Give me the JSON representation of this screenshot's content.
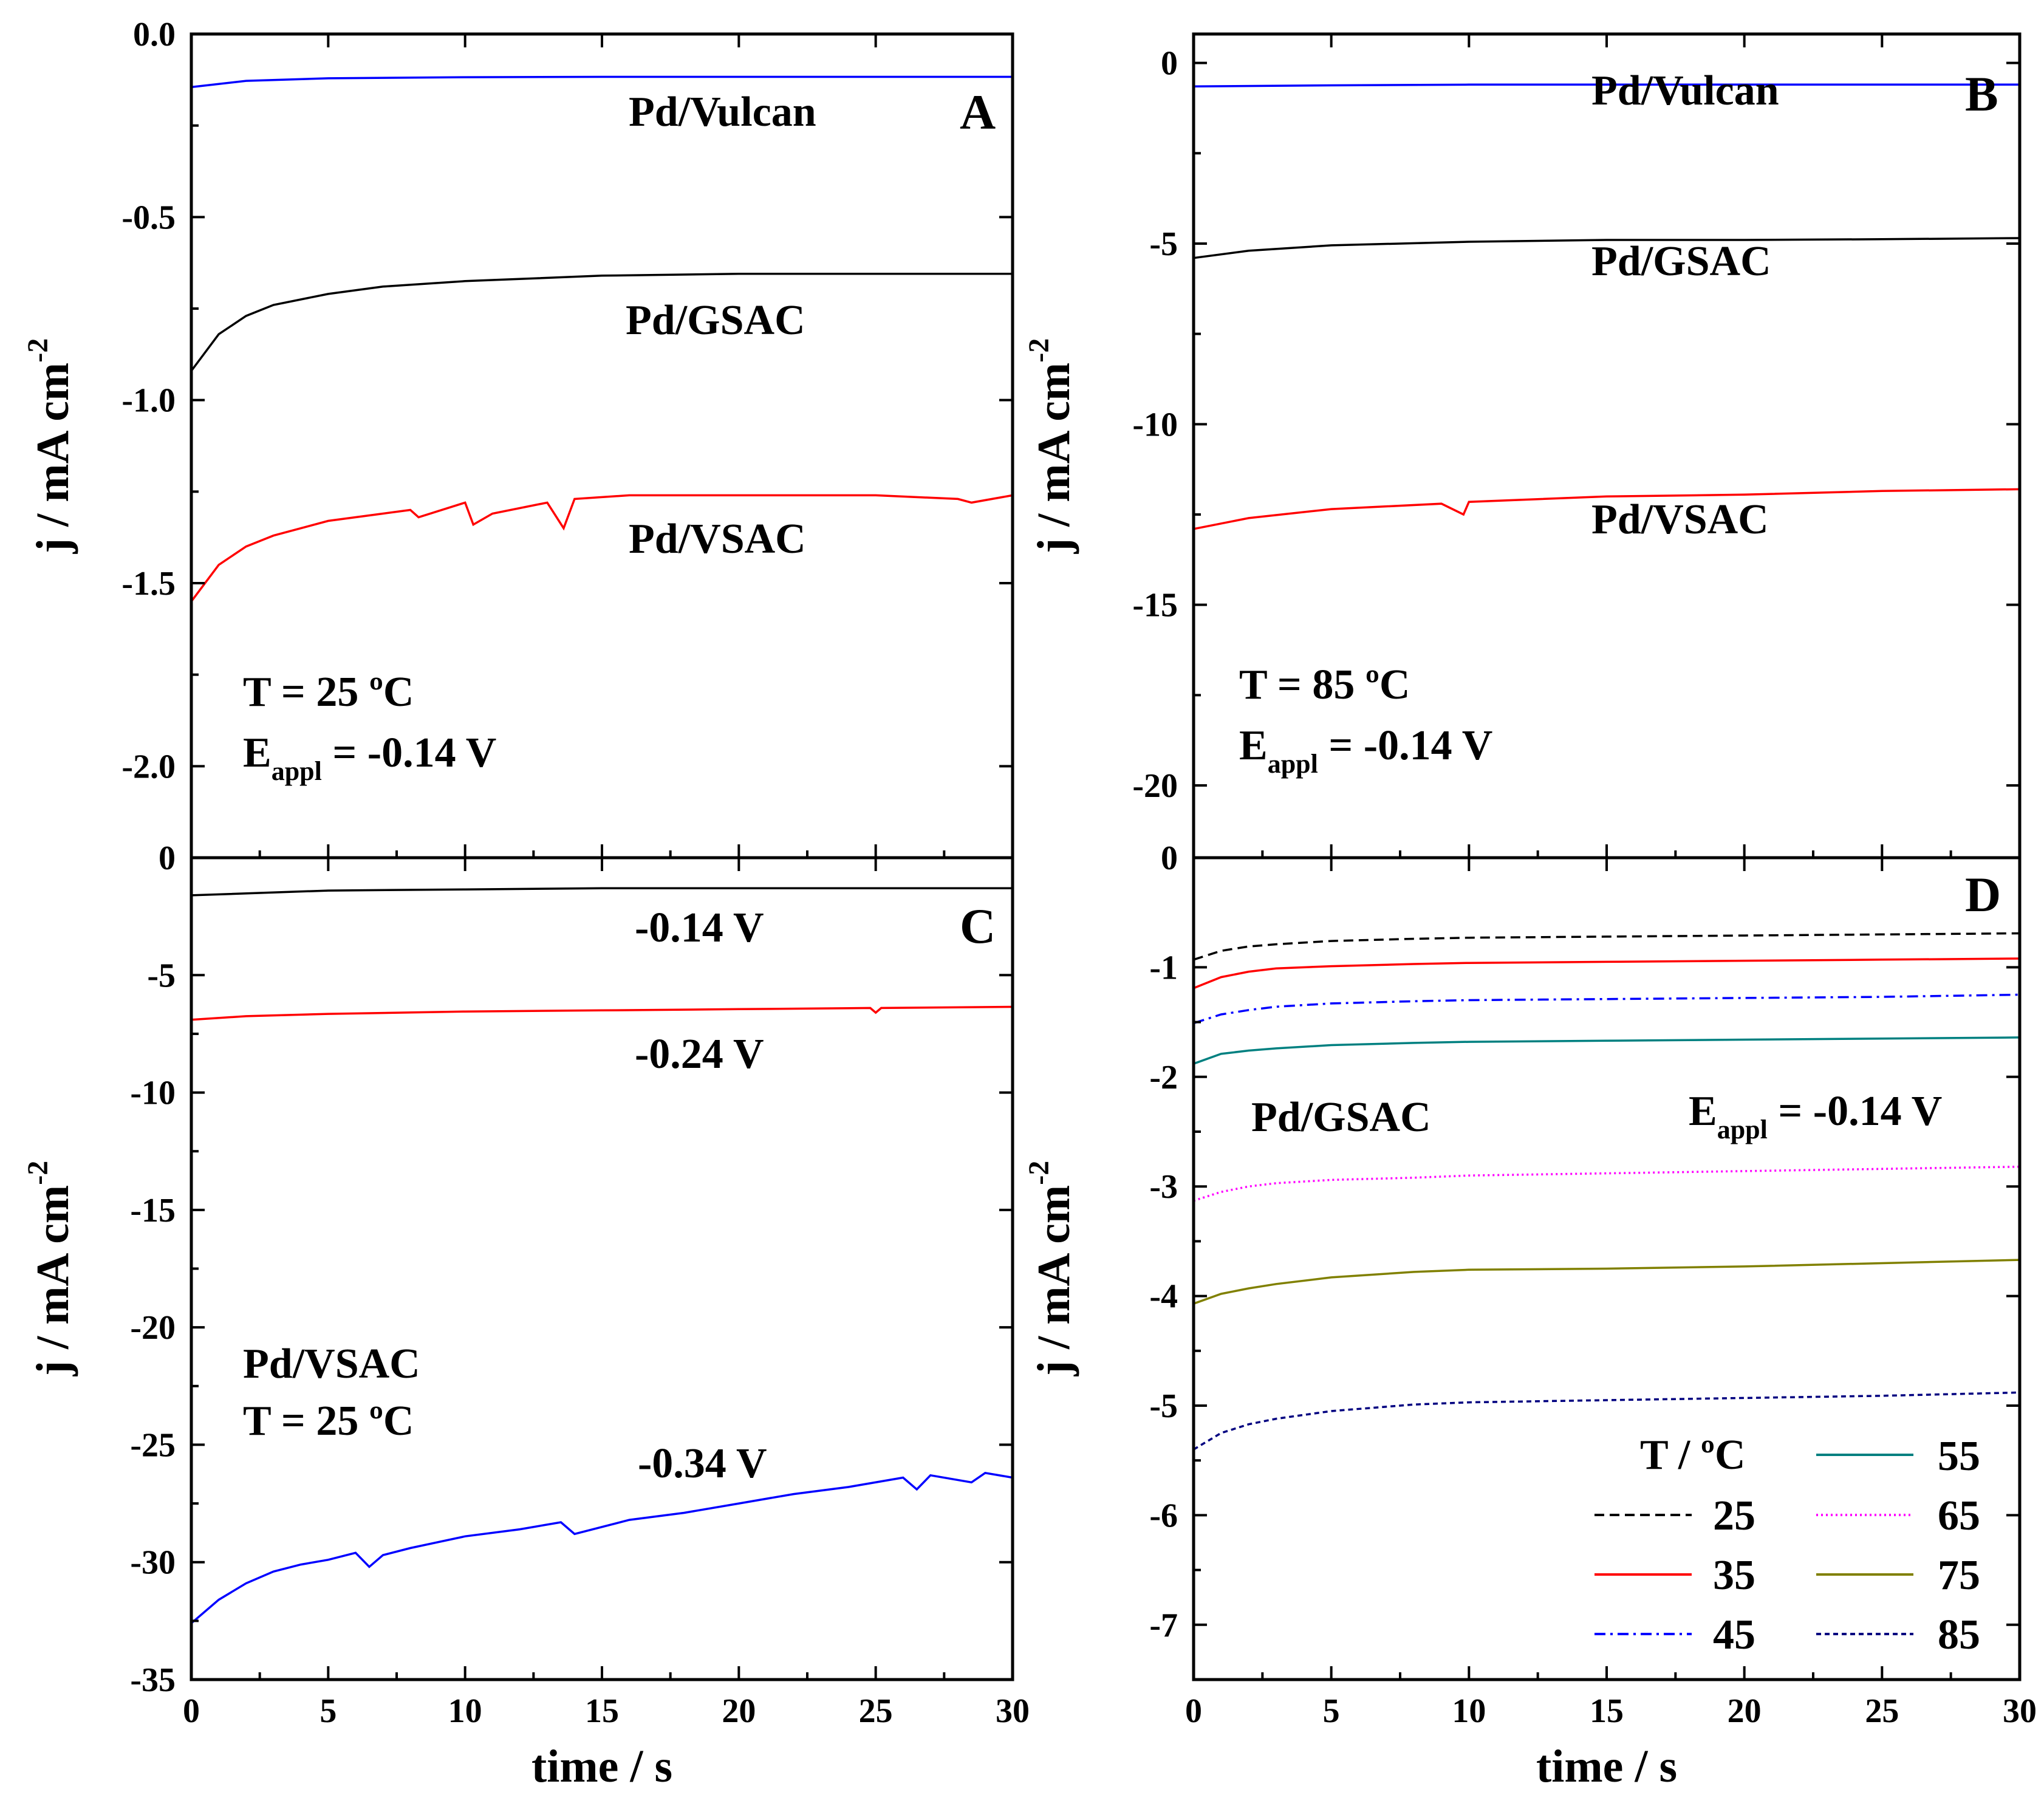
{
  "chart_data": [
    {
      "panel": "A",
      "type": "line",
      "xlabel": "",
      "ylabel": "j / mA cm",
      "ylabel_sup": "-2",
      "xlim": [
        0,
        30
      ],
      "ylim": [
        -2.25,
        0.0
      ],
      "yticks": [
        "0.0",
        "-0.5",
        "-1.0",
        "-1.5",
        "-2.0"
      ],
      "yticks_values": [
        0.0,
        -0.5,
        -1.0,
        -1.5,
        -2.0
      ],
      "xticks_values": [
        0,
        5,
        10,
        15,
        20,
        25,
        30
      ],
      "series": [
        {
          "name": "Pd/Vulcan",
          "color": "#0000ff",
          "style": "solid",
          "x": [
            0,
            2,
            5,
            10,
            15,
            20,
            25,
            30
          ],
          "y": [
            -0.145,
            -0.128,
            -0.121,
            -0.118,
            -0.117,
            -0.117,
            -0.117,
            -0.117
          ]
        },
        {
          "name": "Pd/GSAC",
          "color": "#000000",
          "style": "solid",
          "x": [
            0,
            1,
            2,
            3,
            5,
            7,
            10,
            15,
            20,
            25,
            30
          ],
          "y": [
            -0.92,
            -0.82,
            -0.77,
            -0.74,
            -0.71,
            -0.69,
            -0.675,
            -0.66,
            -0.655,
            -0.655,
            -0.655
          ]
        },
        {
          "name": "Pd/VSAC",
          "color": "#ff0000",
          "style": "solid",
          "x": [
            0,
            1,
            2,
            3,
            5,
            7,
            8,
            8.3,
            10,
            10.3,
            11,
            13,
            13.6,
            14,
            16,
            20,
            25,
            28,
            28.5,
            30
          ],
          "y": [
            -1.55,
            -1.45,
            -1.4,
            -1.37,
            -1.33,
            -1.31,
            -1.3,
            -1.32,
            -1.28,
            -1.34,
            -1.31,
            -1.28,
            -1.35,
            -1.27,
            -1.26,
            -1.26,
            -1.26,
            -1.27,
            -1.28,
            -1.26
          ]
        }
      ],
      "annotations": {
        "series_labels": [
          "Pd/Vulcan",
          "Pd/GSAC",
          "Pd/VSAC"
        ],
        "temp": "T = 25 ºC",
        "eappl_main": "E",
        "eappl_sub": "appl",
        "eappl_value": " = -0.14 V"
      }
    },
    {
      "panel": "B",
      "type": "line",
      "xlabel": "",
      "ylabel": "j / mA cm",
      "ylabel_sup": "-2",
      "xlim": [
        0,
        30
      ],
      "ylim": [
        -22,
        0.8
      ],
      "yticks": [
        "0",
        "-5",
        "-10",
        "-15",
        "-20"
      ],
      "yticks_values": [
        0,
        -5,
        -10,
        -15,
        -20
      ],
      "xticks_values": [
        0,
        5,
        10,
        15,
        20,
        25,
        30
      ],
      "series": [
        {
          "name": "Pd/Vulcan",
          "color": "#0000ff",
          "style": "solid",
          "x": [
            0,
            5,
            10,
            15,
            20,
            25,
            30
          ],
          "y": [
            -0.65,
            -0.62,
            -0.6,
            -0.6,
            -0.6,
            -0.6,
            -0.6
          ]
        },
        {
          "name": "Pd/GSAC",
          "color": "#000000",
          "style": "solid",
          "x": [
            0,
            2,
            5,
            10,
            15,
            20,
            25,
            30
          ],
          "y": [
            -5.4,
            -5.2,
            -5.05,
            -4.95,
            -4.9,
            -4.9,
            -4.88,
            -4.85
          ]
        },
        {
          "name": "Pd/VSAC",
          "color": "#ff0000",
          "style": "solid",
          "x": [
            0,
            2,
            5,
            9,
            9.8,
            10,
            15,
            20,
            25,
            30
          ],
          "y": [
            -12.9,
            -12.6,
            -12.35,
            -12.2,
            -12.5,
            -12.15,
            -12.0,
            -11.95,
            -11.85,
            -11.8
          ]
        }
      ],
      "annotations": {
        "series_labels": [
          "Pd/Vulcan",
          "Pd/GSAC",
          "Pd/VSAC"
        ],
        "temp": "T = 85 ºC",
        "eappl_main": "E",
        "eappl_sub": "appl",
        "eappl_value": " = -0.14 V"
      }
    },
    {
      "panel": "C",
      "type": "line",
      "xlabel": "time / s",
      "ylabel": "j / mA cm",
      "ylabel_sup": "-2",
      "xlim": [
        0,
        30
      ],
      "ylim": [
        -35,
        0
      ],
      "yticks": [
        "-5",
        "-10",
        "-15",
        "-20",
        "-25",
        "-30",
        "-35"
      ],
      "yticks_values": [
        -5,
        -10,
        -15,
        -20,
        -25,
        -30,
        -35
      ],
      "xticks": [
        "0",
        "5",
        "10",
        "15",
        "20",
        "25",
        "30"
      ],
      "xticks_values": [
        0,
        5,
        10,
        15,
        20,
        25,
        30
      ],
      "series": [
        {
          "name": "-0.14 V",
          "color": "#000000",
          "style": "solid",
          "x": [
            0,
            5,
            10,
            15,
            20,
            25,
            30
          ],
          "y": [
            -1.6,
            -1.4,
            -1.35,
            -1.3,
            -1.3,
            -1.3,
            -1.3
          ]
        },
        {
          "name": "-0.24 V",
          "color": "#ff0000",
          "style": "solid",
          "x": [
            0,
            2,
            5,
            10,
            15,
            20,
            24.8,
            25,
            25.2,
            30
          ],
          "y": [
            -6.9,
            -6.75,
            -6.65,
            -6.55,
            -6.5,
            -6.45,
            -6.4,
            -6.6,
            -6.4,
            -6.35
          ]
        },
        {
          "name": "-0.34 V",
          "color": "#0000ff",
          "style": "solid",
          "x": [
            0,
            1,
            2,
            3,
            4,
            5,
            6,
            6.5,
            7,
            8,
            10,
            12,
            13.5,
            14,
            16,
            18,
            20,
            22,
            24,
            26,
            26.5,
            27,
            28.5,
            29,
            30
          ],
          "y": [
            -32.6,
            -31.6,
            -30.9,
            -30.4,
            -30.1,
            -29.9,
            -29.6,
            -30.2,
            -29.7,
            -29.4,
            -28.9,
            -28.6,
            -28.3,
            -28.8,
            -28.2,
            -27.9,
            -27.5,
            -27.1,
            -26.8,
            -26.4,
            -26.9,
            -26.3,
            -26.6,
            -26.2,
            -26.4
          ]
        }
      ],
      "annotations": {
        "series_labels": [
          "-0.14 V",
          "-0.24 V",
          "-0.34 V"
        ],
        "sample": "Pd/VSAC",
        "temp": "T = 25 ºC"
      }
    },
    {
      "panel": "D",
      "type": "line",
      "xlabel": "time / s",
      "ylabel": "j / mA cm",
      "ylabel_sup": "-2",
      "xlim": [
        0,
        30
      ],
      "ylim": [
        -7.5,
        0
      ],
      "yticks": [
        "-1",
        "-2",
        "-3",
        "-4",
        "-5",
        "-6",
        "-7"
      ],
      "yticks_values": [
        -1,
        -2,
        -3,
        -4,
        -5,
        -6,
        -7
      ],
      "xticks": [
        "0",
        "5",
        "10",
        "15",
        "20",
        "25",
        "30"
      ],
      "xticks_values": [
        0,
        5,
        10,
        15,
        20,
        25,
        30
      ],
      "legend_title": "T / ºC",
      "legend_position": "bottom-right",
      "series": [
        {
          "name": "25",
          "color": "#000000",
          "style": "dashed",
          "x": [
            0,
            1,
            2,
            3,
            5,
            8,
            10,
            15,
            20,
            25,
            30
          ],
          "y": [
            -0.93,
            -0.85,
            -0.81,
            -0.79,
            -0.76,
            -0.74,
            -0.73,
            -0.72,
            -0.71,
            -0.7,
            -0.69
          ]
        },
        {
          "name": "35",
          "color": "#ff0000",
          "style": "solid",
          "x": [
            0,
            1,
            2,
            3,
            5,
            8,
            10,
            15,
            20,
            25,
            30
          ],
          "y": [
            -1.19,
            -1.09,
            -1.04,
            -1.01,
            -0.99,
            -0.97,
            -0.96,
            -0.95,
            -0.94,
            -0.93,
            -0.92
          ]
        },
        {
          "name": "45",
          "color": "#0000ff",
          "style": "dashdot",
          "x": [
            0,
            1,
            2,
            3,
            5,
            8,
            10,
            15,
            20,
            25,
            30
          ],
          "y": [
            -1.51,
            -1.43,
            -1.39,
            -1.36,
            -1.33,
            -1.31,
            -1.3,
            -1.29,
            -1.28,
            -1.27,
            -1.25
          ]
        },
        {
          "name": "55",
          "color": "#008080",
          "style": "solid",
          "x": [
            0,
            1,
            2,
            3,
            5,
            8,
            10,
            15,
            20,
            25,
            30
          ],
          "y": [
            -1.88,
            -1.79,
            -1.76,
            -1.74,
            -1.71,
            -1.69,
            -1.68,
            -1.67,
            -1.66,
            -1.65,
            -1.64
          ]
        },
        {
          "name": "65",
          "color": "#ff00ff",
          "style": "dotted",
          "x": [
            0,
            1,
            2,
            3,
            5,
            8,
            10,
            15,
            20,
            25,
            30
          ],
          "y": [
            -3.13,
            -3.05,
            -3.0,
            -2.97,
            -2.94,
            -2.92,
            -2.9,
            -2.88,
            -2.86,
            -2.84,
            -2.82
          ]
        },
        {
          "name": "75",
          "color": "#808000",
          "style": "solid",
          "x": [
            0,
            1,
            2,
            3,
            5,
            8,
            10,
            15,
            20,
            25,
            30
          ],
          "y": [
            -4.07,
            -3.98,
            -3.93,
            -3.89,
            -3.83,
            -3.78,
            -3.76,
            -3.75,
            -3.73,
            -3.7,
            -3.67
          ]
        },
        {
          "name": "85",
          "color": "#000080",
          "style": "shortdash",
          "x": [
            0,
            1,
            2,
            3,
            5,
            8,
            10,
            15,
            20,
            25,
            30
          ],
          "y": [
            -5.4,
            -5.25,
            -5.17,
            -5.12,
            -5.05,
            -4.99,
            -4.97,
            -4.95,
            -4.93,
            -4.91,
            -4.88
          ]
        }
      ],
      "annotations": {
        "sample": "Pd/GSAC",
        "eappl_main": "E",
        "eappl_sub": "appl",
        "eappl_value": " = -0.14 V"
      }
    }
  ]
}
